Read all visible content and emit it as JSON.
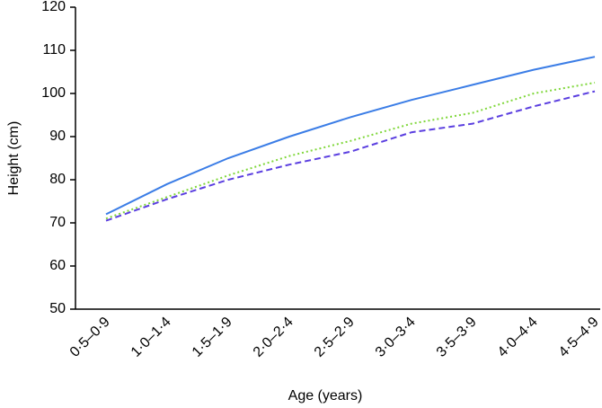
{
  "chart_data": {
    "type": "line",
    "xlabel": "Age (years)",
    "ylabel": "Height (cm)",
    "categories": [
      "0·5–0·9",
      "1·0–1·4",
      "1·5–1·9",
      "2·0–2·4",
      "2·5–2·9",
      "3·0–3·4",
      "3·5–3·9",
      "4·0–4·4",
      "4·5–4·9"
    ],
    "series": [
      {
        "color": "#3b7de6",
        "style": "solid",
        "values": [
          72,
          79,
          85,
          90,
          94.5,
          98.5,
          102,
          105.5,
          108.5
        ]
      },
      {
        "color": "#7fd73a",
        "style": "dotted",
        "values": [
          71,
          76,
          81,
          85.5,
          89,
          93,
          95.5,
          100,
          102.5
        ]
      },
      {
        "color": "#5b3fe0",
        "style": "dashed",
        "values": [
          70.5,
          75.5,
          80,
          83.5,
          86.5,
          91,
          93,
          97,
          100.5
        ]
      }
    ],
    "ylim": [
      50,
      120
    ],
    "yticks": [
      50,
      60,
      70,
      80,
      90,
      100,
      110,
      120
    ]
  }
}
